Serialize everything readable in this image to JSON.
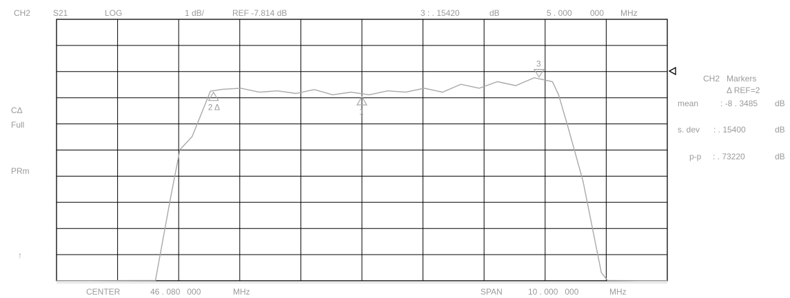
{
  "header": {
    "channel": "CH2",
    "parameter": "S21",
    "format": "LOG",
    "scale": "1 dB/",
    "reference": "REF -7.814 dB",
    "marker_active": "3 : . 15420",
    "marker_unit": "dB",
    "marker_freq": "5 . 000",
    "marker_freq_sub": "000",
    "marker_freq_unit": "MHz"
  },
  "left_panel": {
    "c_delta": "CΔ",
    "full": "Full",
    "prm": "PRm",
    "arrow": "↑"
  },
  "right_panel": {
    "title": "CH2   Markers",
    "ref": "Δ REF=2",
    "stats": [
      {
        "label": "mean",
        "value": ": -8 . 3485",
        "unit": "dB"
      },
      {
        "label": "s. dev",
        "value": ": . 15400",
        "unit": "dB"
      },
      {
        "label": "p-p",
        "value": ": . 73220",
        "unit": "dB"
      }
    ]
  },
  "footer": {
    "center_label": "CENTER",
    "center_value": "46 . 080   000",
    "center_unit": "MHz",
    "span_label": "SPAN",
    "span_value": "10 . 000   000",
    "span_unit": "MHz"
  },
  "chart_data": {
    "type": "line",
    "xlim": [
      41.08,
      51.08
    ],
    "ylim": [
      -15.814,
      -5.814
    ],
    "grid": true,
    "series": [
      {
        "x": [
          41.08,
          42.7,
          42.95,
          43.1,
          43.3,
          43.6,
          43.8,
          44.1,
          44.4,
          44.7,
          45.0,
          45.3,
          45.6,
          45.9,
          46.2,
          46.5,
          46.8,
          47.1,
          47.4,
          47.7,
          48.0,
          48.3,
          48.6,
          48.9,
          49.2,
          49.3,
          49.45,
          49.7,
          50.0,
          50.1,
          51.08
        ],
        "y": [
          -15.814,
          -15.8,
          -12.6,
          -10.8,
          -10.3,
          -8.56,
          -8.49,
          -8.45,
          -8.6,
          -8.55,
          -8.65,
          -8.5,
          -8.7,
          -8.6,
          -8.7,
          -8.55,
          -8.6,
          -8.45,
          -8.6,
          -8.3,
          -8.45,
          -8.2,
          -8.35,
          -8.05,
          -8.2,
          -8.7,
          -9.9,
          -12.0,
          -15.5,
          -15.8,
          -15.814
        ]
      }
    ],
    "markers": [
      {
        "label": "1",
        "x": 46.08,
        "y": -8.72
      },
      {
        "label": "2",
        "x": 43.65,
        "y": -8.55
      },
      {
        "label": "3",
        "x": 48.98,
        "y": -8.1
      }
    ],
    "reference_marker": "◁"
  }
}
